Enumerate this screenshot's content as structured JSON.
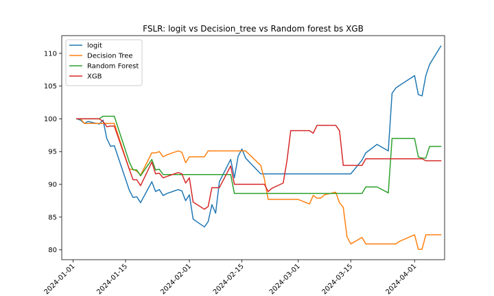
{
  "chart_data": {
    "type": "line",
    "title": "FSLR: logit vs Decision_tree vs Random forest bs XGB",
    "xlabel": "",
    "ylabel": "",
    "x_axis_type": "date",
    "xlim": [
      "2023-12-29",
      "2024-04-09"
    ],
    "ylim": [
      78.5,
      112.7
    ],
    "x_ticks": [
      "2024-01-01",
      "2024-01-15",
      "2024-02-01",
      "2024-02-15",
      "2024-03-01",
      "2024-03-15",
      "2024-04-01"
    ],
    "y_ticks": [
      80,
      85,
      90,
      95,
      100,
      105,
      110
    ],
    "grid": false,
    "legend_position": "top-left",
    "series": [
      {
        "name": "logit",
        "color": "#1f77b4",
        "x": [
          "2024-01-02",
          "2024-01-03",
          "2024-01-04",
          "2024-01-05",
          "2024-01-08",
          "2024-01-09",
          "2024-01-10",
          "2024-01-11",
          "2024-01-12",
          "2024-01-16",
          "2024-01-17",
          "2024-01-18",
          "2024-01-19",
          "2024-01-22",
          "2024-01-23",
          "2024-01-24",
          "2024-01-25",
          "2024-01-26",
          "2024-01-29",
          "2024-01-30",
          "2024-01-31",
          "2024-02-01",
          "2024-02-02",
          "2024-02-05",
          "2024-02-06",
          "2024-02-07",
          "2024-02-08",
          "2024-02-09",
          "2024-02-12",
          "2024-02-13",
          "2024-02-14",
          "2024-02-15",
          "2024-02-16",
          "2024-02-20",
          "2024-03-15",
          "2024-03-18",
          "2024-03-19",
          "2024-03-22",
          "2024-03-25",
          "2024-03-26",
          "2024-03-27",
          "2024-03-28",
          "2024-04-01",
          "2024-04-02",
          "2024-04-03",
          "2024-04-04",
          "2024-04-05",
          "2024-04-08"
        ],
        "values": [
          100.0,
          99.8,
          99.3,
          99.6,
          99.2,
          99.8,
          97.0,
          95.8,
          95.9,
          89.1,
          88.0,
          88.1,
          87.2,
          90.4,
          88.9,
          89.2,
          88.3,
          88.6,
          89.2,
          89.0,
          87.5,
          88.4,
          84.7,
          83.5,
          84.3,
          86.9,
          85.6,
          90.4,
          93.8,
          91.0,
          94.3,
          95.4,
          94.0,
          91.6,
          91.6,
          93.7,
          94.8,
          96.1,
          95.1,
          103.9,
          104.7,
          105.1,
          106.6,
          103.7,
          103.5,
          106.6,
          108.3,
          111.1
        ]
      },
      {
        "name": "Decision Tree",
        "color": "#ff7f0e",
        "x": [
          "2024-01-02",
          "2024-01-03",
          "2024-01-04",
          "2024-01-05",
          "2024-01-08",
          "2024-01-09",
          "2024-01-10",
          "2024-01-11",
          "2024-01-12",
          "2024-01-16",
          "2024-01-17",
          "2024-01-18",
          "2024-01-19",
          "2024-01-22",
          "2024-01-23",
          "2024-01-24",
          "2024-01-25",
          "2024-01-26",
          "2024-01-29",
          "2024-01-30",
          "2024-01-31",
          "2024-02-01",
          "2024-02-02",
          "2024-02-05",
          "2024-02-06",
          "2024-02-07",
          "2024-02-08",
          "2024-02-09",
          "2024-02-12",
          "2024-02-13",
          "2024-02-14",
          "2024-02-15",
          "2024-02-16",
          "2024-02-20",
          "2024-02-21",
          "2024-02-22",
          "2024-02-23",
          "2024-02-26",
          "2024-02-27",
          "2024-02-28",
          "2024-02-29",
          "2024-03-01",
          "2024-03-04",
          "2024-03-05",
          "2024-03-06",
          "2024-03-07",
          "2024-03-08",
          "2024-03-11",
          "2024-03-12",
          "2024-03-13",
          "2024-03-14",
          "2024-03-15",
          "2024-03-18",
          "2024-03-19",
          "2024-03-20",
          "2024-03-21",
          "2024-03-22",
          "2024-03-25",
          "2024-03-26",
          "2024-03-27",
          "2024-03-28",
          "2024-04-01",
          "2024-04-02",
          "2024-04-03",
          "2024-04-04",
          "2024-04-05",
          "2024-04-08"
        ],
        "values": [
          100.0,
          100.0,
          99.3,
          99.3,
          99.3,
          99.3,
          99.3,
          99.3,
          99.3,
          92.3,
          92.3,
          92.0,
          91.4,
          94.8,
          94.8,
          95.0,
          94.2,
          94.5,
          95.1,
          94.9,
          93.3,
          94.2,
          94.2,
          94.2,
          95.1,
          95.1,
          95.1,
          95.1,
          95.1,
          95.1,
          95.1,
          95.1,
          95.1,
          92.9,
          90.8,
          87.7,
          87.7,
          87.7,
          87.7,
          87.7,
          87.7,
          87.7,
          87.0,
          88.3,
          87.9,
          87.9,
          88.4,
          88.8,
          87.2,
          86.5,
          82.0,
          80.9,
          81.9,
          80.9,
          80.9,
          80.9,
          80.9,
          80.9,
          80.9,
          80.9,
          81.3,
          82.3,
          80.1,
          80.1,
          82.3,
          82.3,
          82.3
        ]
      },
      {
        "name": "Random Forest",
        "color": "#2ca02c",
        "x": [
          "2024-01-02",
          "2024-01-03",
          "2024-01-04",
          "2024-01-05",
          "2024-01-08",
          "2024-01-09",
          "2024-01-10",
          "2024-01-11",
          "2024-01-12",
          "2024-01-16",
          "2024-01-17",
          "2024-01-18",
          "2024-01-19",
          "2024-01-22",
          "2024-01-23",
          "2024-01-24",
          "2024-01-25",
          "2024-02-12",
          "2024-02-13",
          "2024-03-18",
          "2024-03-19",
          "2024-03-22",
          "2024-03-25",
          "2024-03-26",
          "2024-03-27",
          "2024-04-01",
          "2024-04-02",
          "2024-04-03",
          "2024-04-04",
          "2024-04-05",
          "2024-04-08"
        ],
        "values": [
          100.0,
          100.0,
          100.0,
          100.0,
          100.0,
          100.4,
          100.4,
          100.4,
          100.4,
          93.4,
          92.2,
          92.2,
          91.3,
          93.8,
          92.2,
          92.3,
          91.5,
          91.5,
          88.6,
          88.6,
          89.6,
          89.6,
          88.7,
          97.0,
          97.0,
          97.0,
          94.2,
          94.0,
          94.0,
          95.8,
          95.8
        ]
      },
      {
        "name": "XGB",
        "color": "#d62728",
        "x": [
          "2024-01-02",
          "2024-01-03",
          "2024-01-04",
          "2024-01-05",
          "2024-01-08",
          "2024-01-09",
          "2024-01-10",
          "2024-01-11",
          "2024-01-12",
          "2024-01-16",
          "2024-01-17",
          "2024-01-18",
          "2024-01-19",
          "2024-01-22",
          "2024-01-23",
          "2024-01-24",
          "2024-01-25",
          "2024-01-26",
          "2024-01-29",
          "2024-01-30",
          "2024-01-31",
          "2024-02-01",
          "2024-02-02",
          "2024-02-05",
          "2024-02-06",
          "2024-02-07",
          "2024-02-08",
          "2024-02-09",
          "2024-02-12",
          "2024-02-13",
          "2024-02-14",
          "2024-02-15",
          "2024-02-16",
          "2024-02-20",
          "2024-02-21",
          "2024-02-22",
          "2024-02-23",
          "2024-02-26",
          "2024-02-27",
          "2024-02-28",
          "2024-02-29",
          "2024-03-01",
          "2024-03-04",
          "2024-03-05",
          "2024-03-06",
          "2024-03-07",
          "2024-03-08",
          "2024-03-11",
          "2024-03-12",
          "2024-03-13",
          "2024-03-14",
          "2024-03-15",
          "2024-03-18",
          "2024-03-19",
          "2024-04-01",
          "2024-04-02",
          "2024-04-03",
          "2024-04-04",
          "2024-04-05",
          "2024-04-08"
        ],
        "values": [
          100.0,
          100.0,
          100.0,
          100.0,
          100.0,
          99.6,
          98.8,
          98.9,
          98.9,
          92.3,
          90.7,
          90.7,
          89.8,
          93.4,
          91.6,
          91.7,
          91.0,
          91.2,
          91.8,
          91.6,
          90.2,
          91.0,
          87.3,
          86.2,
          86.6,
          89.5,
          89.5,
          89.5,
          92.8,
          90.0,
          90.0,
          90.0,
          90.0,
          90.0,
          90.0,
          88.9,
          89.4,
          90.2,
          93.6,
          98.2,
          98.2,
          98.2,
          98.2,
          97.8,
          99.0,
          99.0,
          99.0,
          99.0,
          98.2,
          92.9,
          92.9,
          92.9,
          92.9,
          93.9,
          93.9,
          93.9,
          93.9,
          93.6,
          93.6,
          93.6
        ]
      }
    ]
  }
}
